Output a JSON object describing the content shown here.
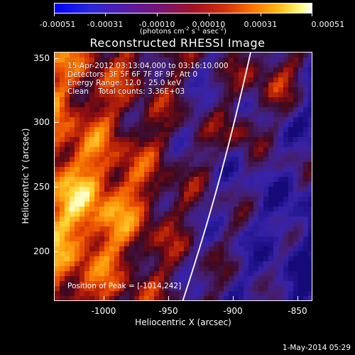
{
  "colorbar": {
    "tick_labels": [
      "-0.00051",
      "-0.00031",
      "-0.00010",
      "0.00010",
      "0.00031",
      "0.00051"
    ],
    "units_prefix": "(photons cm",
    "units_exp1": "-2",
    "units_mid1": " s",
    "units_exp2": "-1",
    "units_mid2": " asec",
    "units_exp3": "-2",
    "units_suffix": ")"
  },
  "title": "Reconstructed RHESSI Image",
  "info": {
    "line1": "15-Apr-2012 03:13:04.000 to 03:16:10.000",
    "line2": "Detectors: 3F 5F 6F 7F 8F 9F, Att 0",
    "line3": "Energy Range: 12.0 - 25.0 keV",
    "line4": "Clean    Total counts: 3.36E+03",
    "peak": "Position of Peak = [-1014,242]"
  },
  "axes": {
    "x_title": "Heliocentric X (arcsec)",
    "y_title": "Heliocentric Y (arcsec)",
    "x_ticks": [
      "-1000",
      "-950",
      "-900",
      "-850"
    ],
    "x_tick_values": [
      -1000,
      -950,
      -900,
      -850
    ],
    "x_range": [
      -1044,
      -844
    ],
    "y_ticks": [
      "350",
      "300",
      "250",
      "200"
    ],
    "y_tick_values": [
      350,
      300,
      250,
      200
    ],
    "y_range": [
      162,
      355
    ]
  },
  "timestamp": "1-May-2014 05:29",
  "colors": {
    "background": "#000000",
    "limb_line": "#ffffff"
  }
}
